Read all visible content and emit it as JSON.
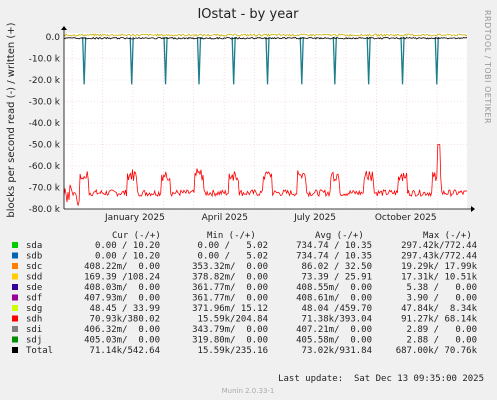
{
  "chart_data": {
    "type": "line",
    "title": "IOstat - by year",
    "ylabel": "blocks per second read (-) / written (+)",
    "y_ticks": [
      "0.0",
      "-10.0 k",
      "-20.0 k",
      "-30.0 k",
      "-40.0 k",
      "-50.0 k",
      "-60.0 k",
      "-70.0 k",
      "-80.0 k"
    ],
    "ylim": [
      -80000,
      0
    ],
    "x_ticks": [
      "January 2025",
      "April 2025",
      "July 2025",
      "October 2025"
    ],
    "side_label": "RRDTOOL / TOBI OETIKER",
    "spikes_x_fraction": [
      0.05,
      0.168,
      0.252,
      0.335,
      0.421,
      0.505,
      0.59,
      0.672,
      0.756,
      0.84,
      0.925
    ],
    "spike_value": -22000,
    "series": [
      {
        "name": "sda",
        "values_approx": [
          0,
          0
        ]
      },
      {
        "name": "sdb",
        "values_approx": [
          0,
          -22000
        ]
      },
      {
        "name": "sdh",
        "values_approx": [
          -72000,
          -68000,
          -58000,
          -50000
        ]
      }
    ]
  },
  "legend": {
    "header": {
      "cur": "Cur (-/+)",
      "min": "Min (-/+)",
      "avg": "Avg (-/+)",
      "max": "Max (-/+)"
    },
    "rows": [
      {
        "name": "sda",
        "color": "#00cc00",
        "cur": "0.00 / 10.20",
        "min": "0.00 /   5.02",
        "avg": "734.74 / 10.35",
        "max": "297.42k/772.44"
      },
      {
        "name": "sdb",
        "color": "#0066b3",
        "cur": "0.00 / 10.20",
        "min": "0.00 /   5.02",
        "avg": "734.74 / 10.35",
        "max": "297.43k/772.44"
      },
      {
        "name": "sdc",
        "color": "#ff8000",
        "cur": "408.22m/  0.00",
        "min": "353.32m/  0.00",
        "avg": "86.02 / 32.50",
        "max": "19.29k/ 17.99k"
      },
      {
        "name": "sdd",
        "color": "#ffcc00",
        "cur": "169.39 /108.24",
        "min": "378.82m/  0.00",
        "avg": "73.39 / 25.91",
        "max": "17.31k/ 10.51k"
      },
      {
        "name": "sde",
        "color": "#330099",
        "cur": "408.03m/  0.00",
        "min": "361.77m/  0.00",
        "avg": "408.55m/  0.00",
        "max": "5.38 /   0.00"
      },
      {
        "name": "sdf",
        "color": "#990099",
        "cur": "407.93m/  0.00",
        "min": "361.77m/  0.00",
        "avg": "408.61m/  0.00",
        "max": "3.90 /   0.00"
      },
      {
        "name": "sdg",
        "color": "#ccff00",
        "cur": "48.45 / 33.99",
        "min": "371.96m/ 15.12",
        "avg": "48.04 /459.70",
        "max": "47.84k/  8.34k"
      },
      {
        "name": "sdh",
        "color": "#ff0000",
        "cur": "70.93k/380.02",
        "min": "15.59k/204.84",
        "avg": "71.38k/393.04",
        "max": "91.27k/ 68.14k"
      },
      {
        "name": "sdi",
        "color": "#808080",
        "cur": "406.32m/  0.00",
        "min": "343.79m/  0.00",
        "avg": "407.21m/  0.00",
        "max": "2.89 /   0.00"
      },
      {
        "name": "sdj",
        "color": "#008f00",
        "cur": "405.03m/  0.00",
        "min": "319.80m/  0.00",
        "avg": "405.58m/  0.00",
        "max": "2.88 /   0.00"
      },
      {
        "name": "Total",
        "color": "#000000",
        "cur": "71.14k/542.64",
        "min": "15.59k/235.16",
        "avg": "73.02k/931.84",
        "max": "687.00k/ 70.76k"
      }
    ]
  },
  "footer": {
    "last_update": "Last update:  Sat Dec 13 09:35:00 2025",
    "munin_version": "Munin 2.0.33-1"
  }
}
